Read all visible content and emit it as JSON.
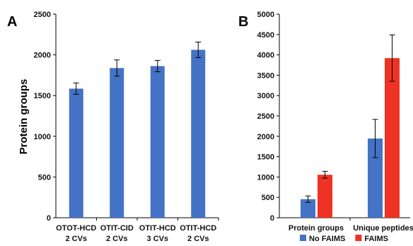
{
  "chart_data": [
    {
      "panel_label": "A",
      "type": "bar",
      "categories": [
        [
          "OTOT-HCD",
          "2 CVs"
        ],
        [
          "OTIT-CID",
          "2 CVs"
        ],
        [
          "OTIT-HCD",
          "3 CVs"
        ],
        [
          "OTIT-HCD",
          "2 CVs"
        ]
      ],
      "values": [
        1585,
        1838,
        1862,
        2062
      ],
      "errors": [
        70,
        100,
        70,
        95
      ],
      "ylabel": "Protein groups",
      "ylim": [
        0,
        2500
      ],
      "yticks": [
        0,
        500,
        1000,
        1500,
        2000,
        2500
      ],
      "colors": [
        "#4472C4"
      ],
      "grid": false
    },
    {
      "panel_label": "B",
      "type": "bar",
      "categories": [
        "Protein groups",
        "Unique peptides"
      ],
      "series": [
        {
          "name": "No FAIMS",
          "color": "#4472C4",
          "values": [
            455,
            1945
          ],
          "errors": [
            80,
            470
          ]
        },
        {
          "name": "FAIMS",
          "color": "#EE3324",
          "values": [
            1055,
            3920
          ],
          "errors": [
            85,
            570
          ]
        }
      ],
      "ylim": [
        0,
        5000
      ],
      "yticks": [
        0,
        500,
        1000,
        1500,
        2000,
        2500,
        3000,
        3500,
        4000,
        4500,
        5000
      ],
      "legend_position": "bottom",
      "grid": false
    }
  ]
}
